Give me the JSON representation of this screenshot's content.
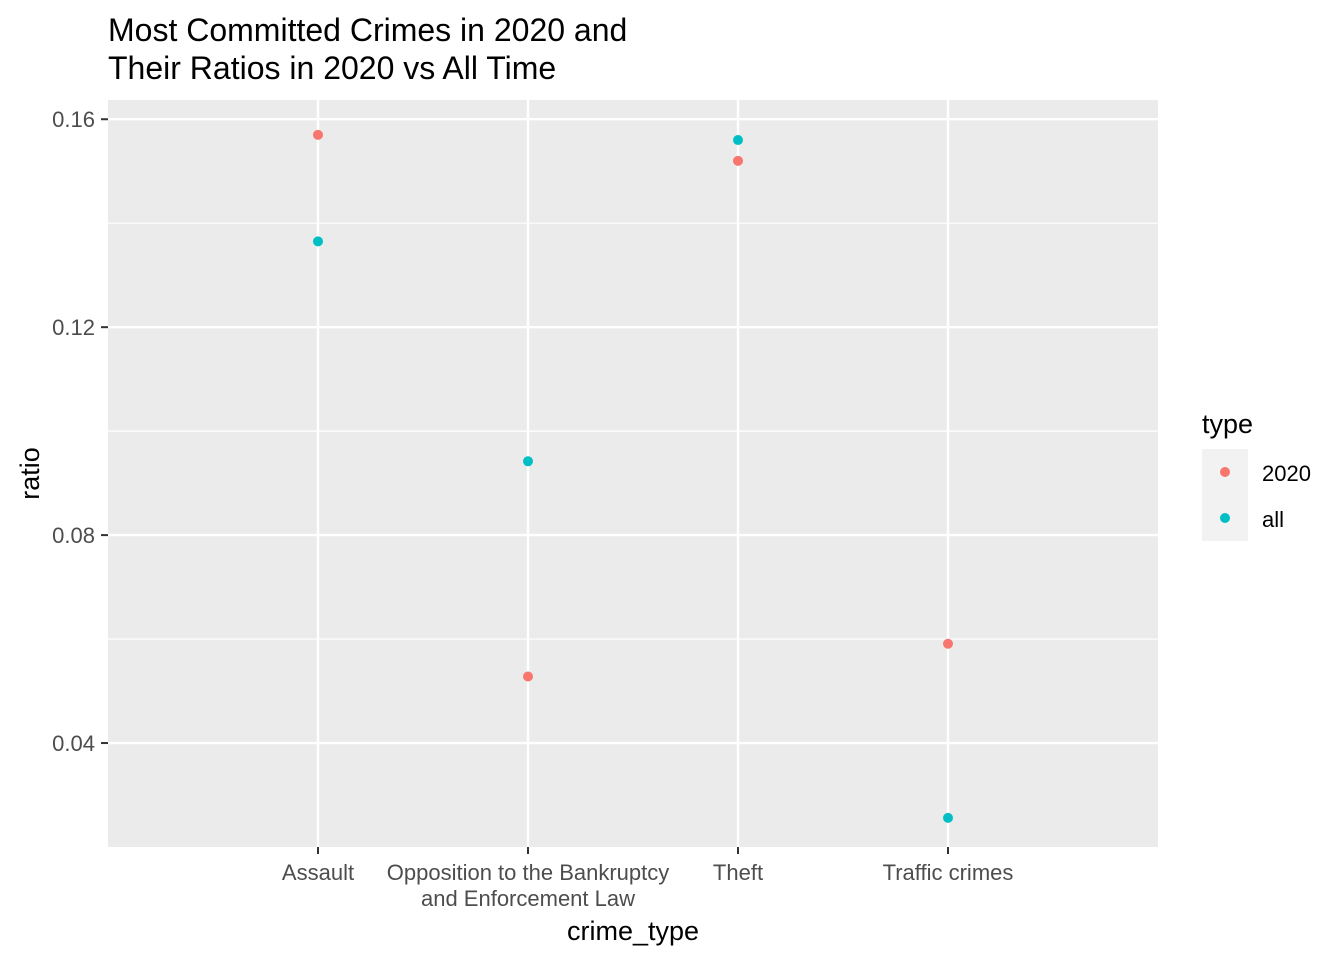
{
  "chart_data": {
    "type": "scatter",
    "title": [
      "Most Committed Crimes in 2020 and",
      "Their Ratios in 2020 vs All Time"
    ],
    "xlabel": "crime_type",
    "ylabel": "ratio",
    "categories": [
      [
        "Assault"
      ],
      [
        "Opposition to the Bankruptcy",
        "and Enforcement Law"
      ],
      [
        "Theft"
      ],
      [
        "Traffic crimes"
      ]
    ],
    "ylim": [
      0.02,
      0.1637
    ],
    "yticks": [
      0.04,
      0.08,
      0.12,
      0.16
    ],
    "ytick_labels": [
      "0.04",
      "0.08",
      "0.12",
      "0.16"
    ],
    "grid": true,
    "legend": {
      "title": "type",
      "placement": "right",
      "entries": [
        "2020",
        "all"
      ]
    },
    "series": [
      {
        "name": "2020",
        "color": "#F8766D",
        "values": [
          0.157,
          0.0528,
          0.152,
          0.0591
        ]
      },
      {
        "name": "all",
        "color": "#00BFC4",
        "values": [
          0.1365,
          0.0942,
          0.156,
          0.0256
        ]
      }
    ],
    "panel_color": "#EBEBEB",
    "grid_color": "#FFFFFF"
  }
}
